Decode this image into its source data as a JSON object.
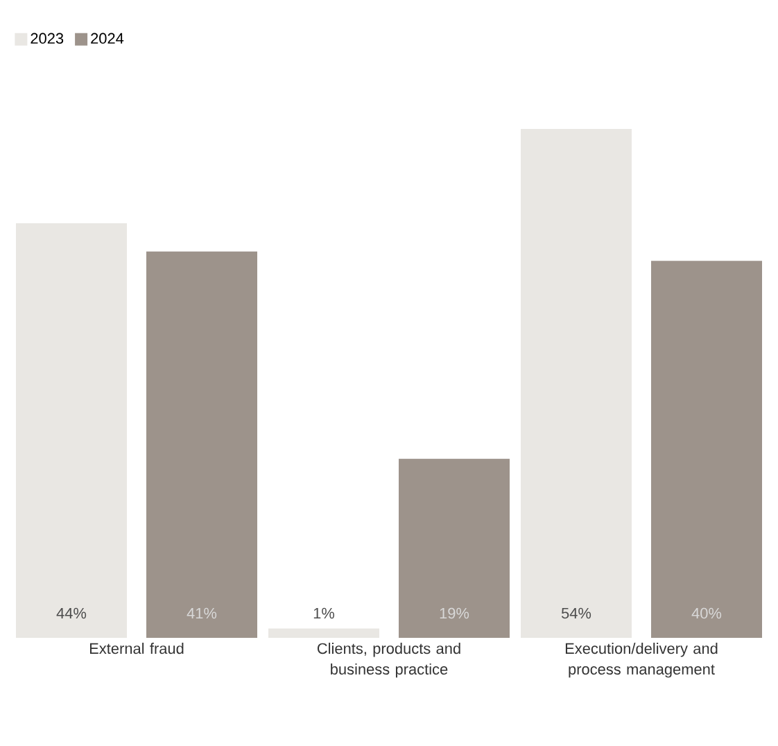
{
  "chart_data": {
    "type": "bar",
    "categories": [
      "External fraud",
      "Clients, products and business practice",
      "Execution/delivery and process management"
    ],
    "series": [
      {
        "name": "2023",
        "color": "#e9e7e3",
        "values": [
          44,
          1,
          54
        ],
        "value_labels": [
          "44%",
          "1%",
          "54%"
        ]
      },
      {
        "name": "2024",
        "color": "#9d938b",
        "values": [
          41,
          19,
          40
        ],
        "value_labels": [
          "41%",
          "19%",
          "40%"
        ]
      }
    ],
    "legend": "top left"
  }
}
